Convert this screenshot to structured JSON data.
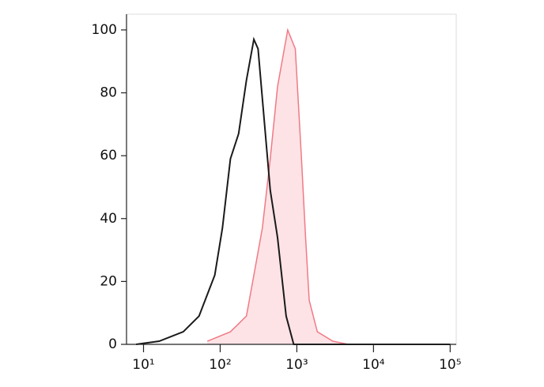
{
  "chart_data": {
    "type": "histogram-overlay",
    "log_x": true,
    "xlim": [
      6,
      120000
    ],
    "xticks": [
      {
        "value": 10,
        "label": "10¹"
      },
      {
        "value": 100,
        "label": "10²"
      },
      {
        "value": 1000,
        "label": "10³"
      },
      {
        "value": 10000,
        "label": "10⁴"
      },
      {
        "value": 100000,
        "label": "10⁵"
      }
    ],
    "ylim": [
      0,
      105
    ],
    "yticks": [
      0,
      20,
      40,
      60,
      80,
      100
    ],
    "series": [
      {
        "color": "#f07a85",
        "fill": "#fde3e6",
        "x": [
          68,
          136,
          220,
          275,
          355,
          450,
          560,
          760,
          955,
          1150,
          1300,
          1450,
          1850,
          2950,
          4700
        ],
        "values": [
          1,
          4,
          9,
          22,
          37,
          59,
          82,
          100,
          94,
          59,
          34,
          14,
          4,
          1,
          0
        ]
      },
      {
        "color": "#1a1a1a",
        "x": [
          8,
          16,
          33,
          53,
          85,
          107,
          136,
          174,
          220,
          275,
          312,
          450,
          560,
          725,
          910,
          2000,
          100000
        ],
        "values": [
          0,
          1,
          4,
          9,
          22,
          37,
          59,
          67,
          84,
          97,
          94,
          49,
          34,
          9,
          0,
          0,
          0
        ]
      }
    ]
  }
}
